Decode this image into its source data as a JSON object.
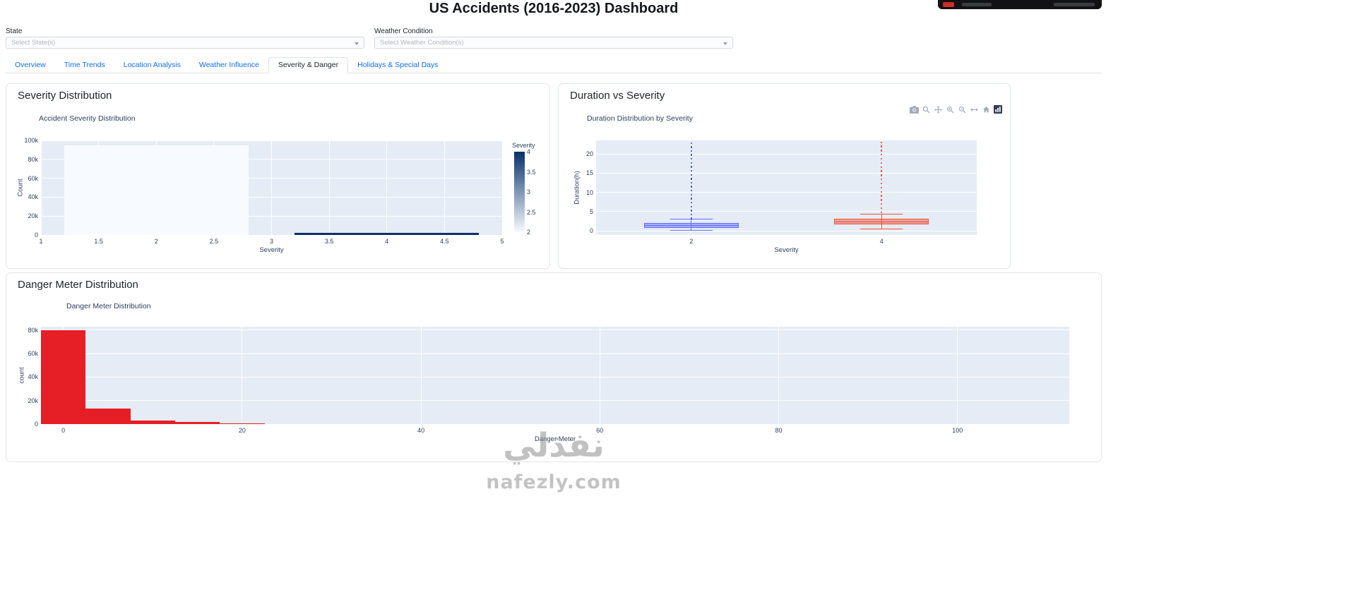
{
  "page": {
    "title": "US Accidents (2016-2023) Dashboard"
  },
  "filters": {
    "state": {
      "label": "State",
      "placeholder": "Select State(s)"
    },
    "weather": {
      "label": "Weather Condition",
      "placeholder": "Select Weather Condition(s)"
    }
  },
  "tabs": [
    {
      "label": "Overview",
      "active": false
    },
    {
      "label": "Time Trends",
      "active": false
    },
    {
      "label": "Location Analysis",
      "active": false
    },
    {
      "label": "Weather Influence",
      "active": false
    },
    {
      "label": "Severity & Danger",
      "active": true
    },
    {
      "label": "Holidays & Special Days",
      "active": false
    }
  ],
  "cards": {
    "severity": {
      "title": "Severity Distribution"
    },
    "duration": {
      "title": "Duration vs Severity"
    },
    "danger": {
      "title": "Danger Meter Distribution"
    }
  },
  "modebar_icons": [
    "camera-icon",
    "zoom-icon",
    "pan-icon",
    "zoom-in-icon",
    "zoom-out-icon",
    "autoscale-icon",
    "reset-axes-icon",
    "plotly-logo-icon"
  ],
  "chart_data": [
    {
      "id": "severity-histogram",
      "type": "bar",
      "title": "Accident Severity Distribution",
      "xlabel": "Severity",
      "ylabel": "Count",
      "xlim": [
        1,
        5
      ],
      "ylim": [
        0,
        100000
      ],
      "plot_bg": "#e5ecf6",
      "xticks": [
        {
          "value": 1,
          "label": "1"
        },
        {
          "value": 1.5,
          "label": "1.5"
        },
        {
          "value": 2,
          "label": "2"
        },
        {
          "value": 2.5,
          "label": "2.5"
        },
        {
          "value": 3,
          "label": "3"
        },
        {
          "value": 3.5,
          "label": "3.5"
        },
        {
          "value": 4,
          "label": "4"
        },
        {
          "value": 4.5,
          "label": "4.5"
        },
        {
          "value": 5,
          "label": "5"
        }
      ],
      "yticks": [
        {
          "value": 0,
          "label": "0"
        },
        {
          "value": 20000,
          "label": "20k"
        },
        {
          "value": 40000,
          "label": "40k"
        },
        {
          "value": 60000,
          "label": "60k"
        },
        {
          "value": 80000,
          "label": "80k"
        },
        {
          "value": 100000,
          "label": "100k"
        }
      ],
      "bars": [
        {
          "x0": 1.2,
          "x1": 2.8,
          "count": 95000,
          "severity": 2,
          "color": "#f7fbff"
        },
        {
          "x0": 3.2,
          "x1": 4.8,
          "count": 2200,
          "severity": 4,
          "color": "#08306b"
        }
      ],
      "colorbar": {
        "title": "Severity",
        "min": 2,
        "max": 4,
        "top_color": "#08306b",
        "bottom_color": "#f7fbff",
        "ticks": [
          {
            "value": 4,
            "label": "4"
          },
          {
            "value": 3.5,
            "label": "3.5"
          },
          {
            "value": 3,
            "label": "3"
          },
          {
            "value": 2.5,
            "label": "2.5"
          },
          {
            "value": 2,
            "label": "2"
          }
        ]
      }
    },
    {
      "id": "duration-box",
      "type": "box",
      "title": "Duration Distribution by Severity",
      "xlabel": "Severity",
      "ylabel": "Duration(h)",
      "ylim": [
        -1.1,
        23.5
      ],
      "plot_bg": "#e5ecf6",
      "yticks": [
        {
          "value": 0,
          "label": "0"
        },
        {
          "value": 5,
          "label": "5"
        },
        {
          "value": 10,
          "label": "10"
        },
        {
          "value": 15,
          "label": "15"
        },
        {
          "value": 20,
          "label": "20"
        }
      ],
      "categories": [
        "2",
        "4"
      ],
      "series": [
        {
          "name": "2",
          "color": "#636efa",
          "fill": "rgba(99,110,250,0.5)",
          "point_color": "#3d4db8",
          "q1": 0.7,
          "median": 1.3,
          "q3": 2.1,
          "whisker_low": 0.15,
          "whisker_high": 3.0,
          "outliers": {
            "min": 3.2,
            "max": 22.8,
            "n": 20
          }
        },
        {
          "name": "4",
          "color": "#ef553b",
          "fill": "rgba(239,85,59,0.5)",
          "point_color": "#e8402a",
          "q1": 1.6,
          "median": 2.3,
          "q3": 3.1,
          "whisker_low": 0.4,
          "whisker_high": 4.4,
          "outliers": {
            "min": 4.8,
            "max": 23.0,
            "n": 18
          }
        }
      ]
    },
    {
      "id": "danger-histogram",
      "type": "bar",
      "title": "Danger Meter Distribution",
      "xlabel": "Danger Meter",
      "ylabel": "count",
      "xlim": [
        -2.5,
        112.5
      ],
      "ylim": [
        0,
        83000
      ],
      "plot_bg": "#e5ecf6",
      "bar_color": "#e61e25",
      "xticks": [
        {
          "value": 0,
          "label": "0"
        },
        {
          "value": 20,
          "label": "20"
        },
        {
          "value": 40,
          "label": "40"
        },
        {
          "value": 60,
          "label": "60"
        },
        {
          "value": 80,
          "label": "80"
        },
        {
          "value": 100,
          "label": "100"
        }
      ],
      "yticks": [
        {
          "value": 0,
          "label": "0"
        },
        {
          "value": 20000,
          "label": "20k"
        },
        {
          "value": 40000,
          "label": "40k"
        },
        {
          "value": 60000,
          "label": "60k"
        },
        {
          "value": 80000,
          "label": "80k"
        }
      ],
      "bars": [
        {
          "x0": -2.5,
          "x1": 2.5,
          "count": 80000
        },
        {
          "x0": 2.5,
          "x1": 7.5,
          "count": 13000
        },
        {
          "x0": 7.5,
          "x1": 12.5,
          "count": 3200
        },
        {
          "x0": 12.5,
          "x1": 17.5,
          "count": 1800
        },
        {
          "x0": 17.5,
          "x1": 22.5,
          "count": 900
        }
      ]
    }
  ],
  "watermark": {
    "logo_text": "نفذلي",
    "site": "nafezly.com"
  }
}
